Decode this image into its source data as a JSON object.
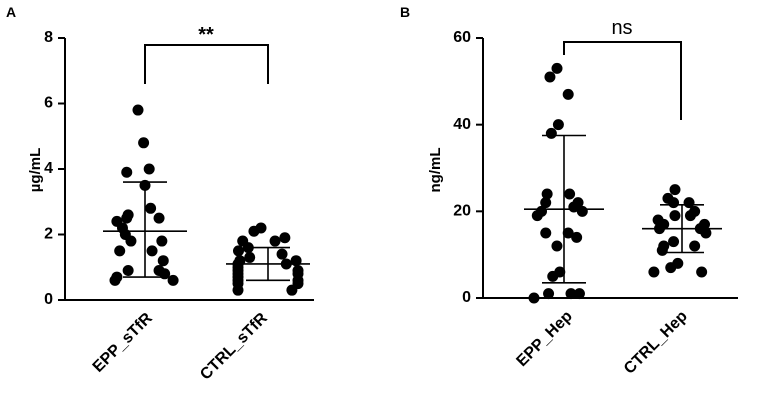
{
  "chart_data": [
    {
      "type": "scatter",
      "panel": "A",
      "ylabel": "µg/mL",
      "ylim": [
        0,
        8
      ],
      "yticks": [
        "0",
        "2",
        "4",
        "6",
        "8"
      ],
      "categories": [
        "EPP_sTfR",
        "CTRL_sTfR"
      ],
      "series": [
        {
          "values": [
            5.8,
            4.8,
            4.0,
            3.9,
            3.5,
            2.8,
            2.6,
            2.5,
            2.5,
            2.4,
            2.2,
            2.0,
            1.8,
            1.8,
            1.5,
            1.5,
            1.2,
            0.9,
            0.9,
            0.8,
            0.7,
            0.6,
            0.6
          ],
          "mean": 2.1,
          "sd_low": 0.7,
          "sd_high": 3.6
        },
        {
          "values": [
            2.2,
            2.1,
            1.9,
            1.8,
            1.8,
            1.6,
            1.5,
            1.4,
            1.3,
            1.2,
            1.2,
            1.1,
            1.1,
            1.0,
            0.9,
            0.9,
            0.8,
            0.8,
            0.7,
            0.6,
            0.6,
            0.5,
            0.5,
            0.3,
            0.3
          ],
          "mean": 1.1,
          "sd_low": 0.6,
          "sd_high": 1.6
        }
      ],
      "significance": "**"
    },
    {
      "type": "scatter",
      "panel": "B",
      "ylabel": "ng/mL",
      "ylim": [
        0,
        60
      ],
      "yticks": [
        "0",
        "20",
        "40",
        "60"
      ],
      "categories": [
        "EPP_Hep",
        "CTRL_Hep"
      ],
      "series": [
        {
          "values": [
            53,
            51,
            47,
            40,
            38,
            24,
            24,
            22,
            22,
            21,
            20,
            20,
            19,
            15,
            15,
            14,
            12,
            6,
            5,
            1,
            1,
            1,
            0
          ],
          "mean": 20.5,
          "sd_low": 3.5,
          "sd_high": 37.5
        },
        {
          "values": [
            25,
            23,
            22,
            22,
            20,
            19,
            19,
            18,
            17,
            17,
            16,
            16,
            15,
            13,
            12,
            12,
            11,
            8,
            7,
            6,
            6
          ],
          "mean": 16,
          "sd_low": 10.5,
          "sd_high": 21.5
        }
      ],
      "significance": "ns"
    }
  ]
}
